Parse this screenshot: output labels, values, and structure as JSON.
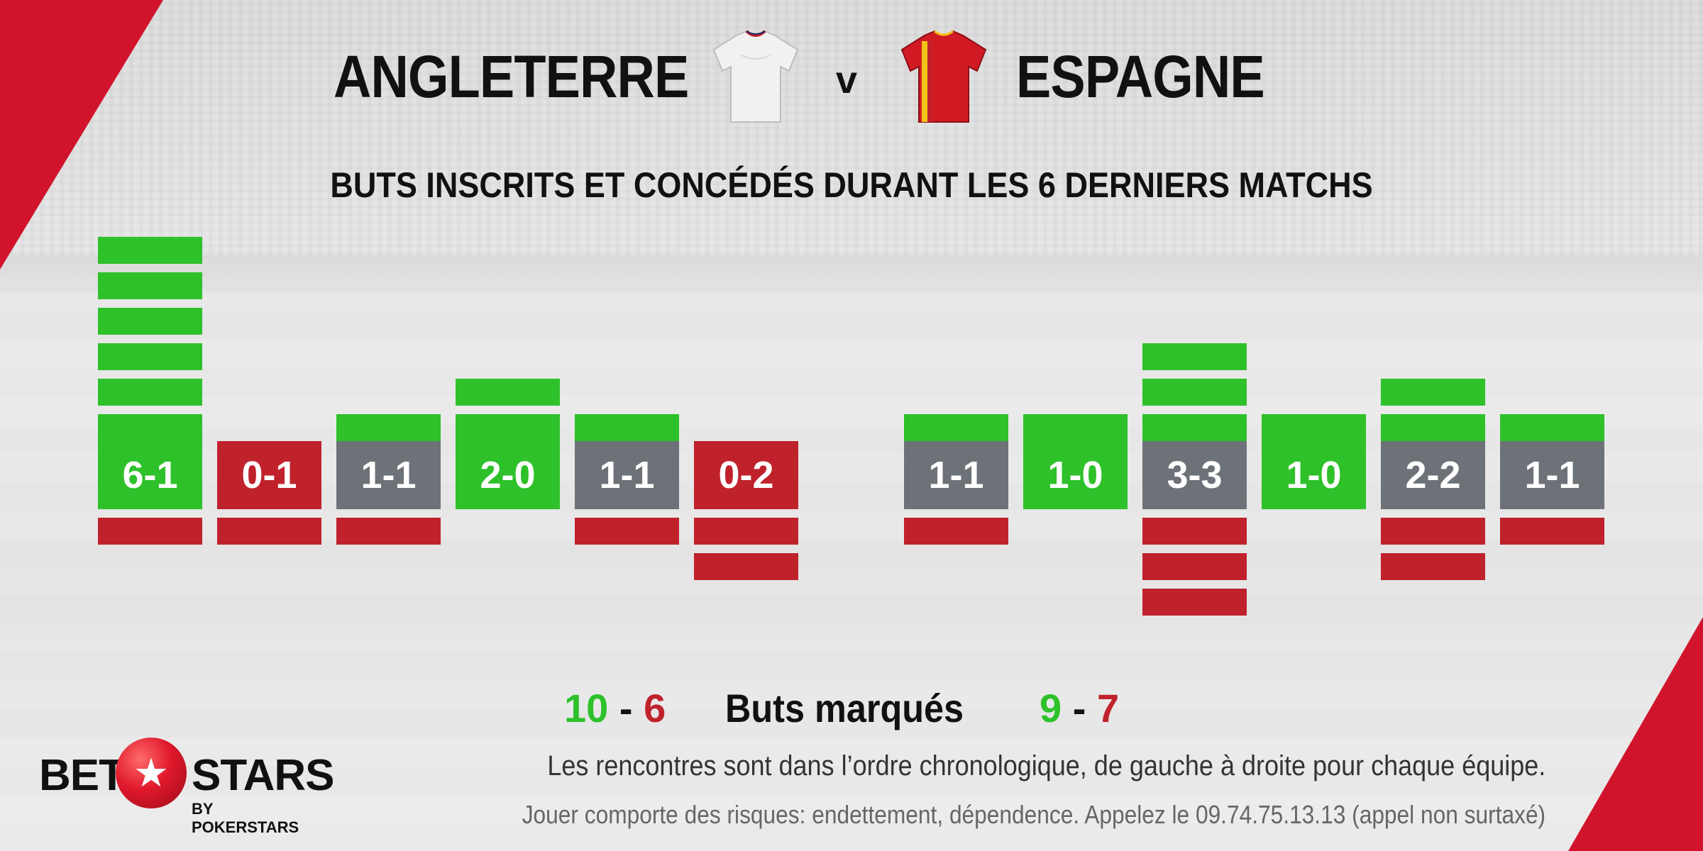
{
  "header": {
    "home_team": "ANGLETERRE",
    "vs": "v",
    "away_team": "ESPAGNE",
    "subtitle": "BUTS INSCRITS ET CONCÉDÉS DURANT LES 6 DERNIERS MATCHS"
  },
  "colors": {
    "win": "#2ec12a",
    "loss": "#c0222c",
    "draw": "#6d7278",
    "goal_scored": "#2ec12a",
    "goal_conceded": "#c0222c",
    "brand_red": "#d1142b"
  },
  "chart_data": {
    "type": "bar",
    "groups": [
      {
        "team": "ANGLETERRE",
        "matches": [
          {
            "score": "6-1",
            "scored": 6,
            "conceded": 1,
            "result": "win"
          },
          {
            "score": "0-1",
            "scored": 0,
            "conceded": 1,
            "result": "loss"
          },
          {
            "score": "1-1",
            "scored": 1,
            "conceded": 1,
            "result": "draw"
          },
          {
            "score": "2-0",
            "scored": 2,
            "conceded": 0,
            "result": "win"
          },
          {
            "score": "1-1",
            "scored": 1,
            "conceded": 1,
            "result": "draw"
          },
          {
            "score": "0-2",
            "scored": 0,
            "conceded": 2,
            "result": "loss"
          }
        ]
      },
      {
        "team": "ESPAGNE",
        "matches": [
          {
            "score": "1-1",
            "scored": 1,
            "conceded": 1,
            "result": "draw"
          },
          {
            "score": "1-0",
            "scored": 1,
            "conceded": 0,
            "result": "win"
          },
          {
            "score": "3-3",
            "scored": 3,
            "conceded": 3,
            "result": "draw"
          },
          {
            "score": "1-0",
            "scored": 1,
            "conceded": 0,
            "result": "win"
          },
          {
            "score": "2-2",
            "scored": 2,
            "conceded": 2,
            "result": "draw"
          },
          {
            "score": "1-1",
            "scored": 1,
            "conceded": 1,
            "result": "draw"
          }
        ]
      }
    ]
  },
  "totals": {
    "label": "Buts marqués",
    "home_scored": "10",
    "home_conceded": "6",
    "away_scored": "9",
    "away_conceded": "7",
    "separator": "-"
  },
  "footer": {
    "note": "Les rencontres sont dans l’ordre chronologique, de gauche à droite pour chaque équipe.",
    "disclaimer": "Jouer comporte des risques: endettement, dépendence. Appelez le 09.74.75.13.13 (appel non surtaxé)"
  },
  "logo": {
    "bet": "BET",
    "stars": "STARS",
    "sub": "BY POKERSTARS",
    "icon": "star-ball-icon"
  }
}
